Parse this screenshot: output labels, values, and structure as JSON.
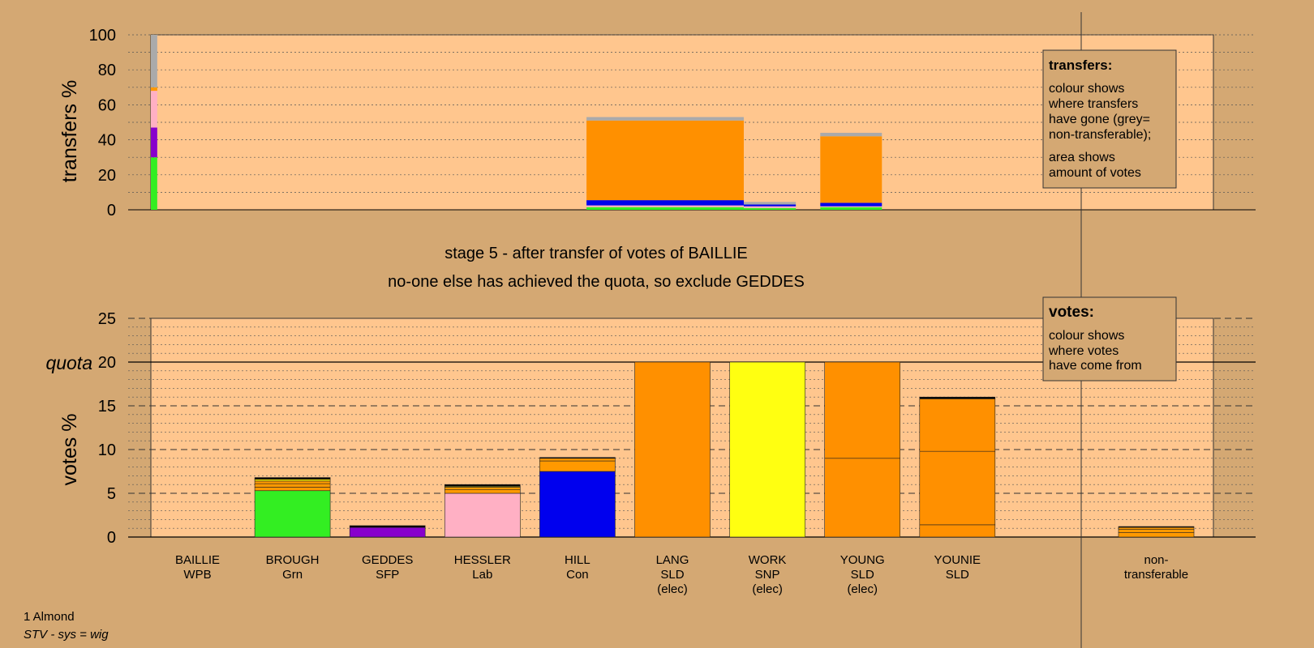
{
  "chart_data": [
    {
      "type": "bar",
      "name": "transfers",
      "ylabel": "transfers %",
      "ylim": [
        0,
        100
      ],
      "yticks": [
        0,
        20,
        40,
        60,
        80,
        100
      ],
      "grid": "dotted",
      "segments": [
        {
          "x0": 0.0,
          "x1": 0.6,
          "y0": 0,
          "y1": 30,
          "color": "#33ee22"
        },
        {
          "x0": 0.0,
          "x1": 0.6,
          "y0": 30,
          "y1": 47,
          "color": "#8800cc"
        },
        {
          "x0": 0.0,
          "x1": 0.6,
          "y0": 47,
          "y1": 68,
          "color": "#ffb0c4"
        },
        {
          "x0": 0.0,
          "x1": 0.6,
          "y0": 68,
          "y1": 70,
          "color": "#ff9900"
        },
        {
          "x0": 0.0,
          "x1": 0.6,
          "y0": 70,
          "y1": 100,
          "color": "#aaaaaa"
        },
        {
          "x0": 41.0,
          "x1": 55.8,
          "y0": 0,
          "y1": 1.5,
          "color": "#33ee22"
        },
        {
          "x0": 41.0,
          "x1": 55.8,
          "y0": 1.5,
          "y1": 2.5,
          "color": "#ffb0c4"
        },
        {
          "x0": 41.0,
          "x1": 55.8,
          "y0": 2.5,
          "y1": 5.5,
          "color": "#0000ee"
        },
        {
          "x0": 41.0,
          "x1": 55.8,
          "y0": 5.5,
          "y1": 51,
          "color": "#ff9000"
        },
        {
          "x0": 41.0,
          "x1": 55.8,
          "y0": 51,
          "y1": 53,
          "color": "#aaaaaa"
        },
        {
          "x0": 55.8,
          "x1": 60.7,
          "y0": 0,
          "y1": 1,
          "color": "#33ee22"
        },
        {
          "x0": 55.8,
          "x1": 60.7,
          "y0": 1,
          "y1": 2,
          "color": "#ffb0c4"
        },
        {
          "x0": 55.8,
          "x1": 60.7,
          "y0": 2,
          "y1": 3,
          "color": "#0000ee"
        },
        {
          "x0": 55.8,
          "x1": 60.7,
          "y0": 3,
          "y1": 4.5,
          "color": "#aaaaaa"
        },
        {
          "x0": 63.0,
          "x1": 68.8,
          "y0": 0,
          "y1": 1.5,
          "color": "#33ee22"
        },
        {
          "x0": 63.0,
          "x1": 68.8,
          "y0": 1.5,
          "y1": 2,
          "color": "#ffb0c4"
        },
        {
          "x0": 63.0,
          "x1": 68.8,
          "y0": 2,
          "y1": 4,
          "color": "#0000ee"
        },
        {
          "x0": 63.0,
          "x1": 68.8,
          "y0": 4,
          "y1": 42,
          "color": "#ff9000"
        },
        {
          "x0": 63.0,
          "x1": 68.8,
          "y0": 42,
          "y1": 44,
          "color": "#aaaaaa"
        }
      ]
    },
    {
      "type": "bar",
      "name": "votes",
      "ylabel": "votes %",
      "ylim": [
        0,
        25
      ],
      "yticks": [
        0,
        5,
        10,
        15,
        20,
        25
      ],
      "quota": 20,
      "quota_label": "quota",
      "grid": "dotted",
      "bars": [
        {
          "label1": "BAILLIE",
          "label2": "WPB",
          "label3": "",
          "segments": []
        },
        {
          "label1": "BROUGH",
          "label2": "Grn",
          "label3": "",
          "segments": [
            {
              "value": 5.3,
              "color": "#33ee22"
            },
            {
              "value": 0.4,
              "color": "#ff9900"
            },
            {
              "value": 0.4,
              "color": "#ff9900"
            },
            {
              "value": 0.3,
              "color": "#ff9900"
            },
            {
              "value": 0.2,
              "color": "#ffee00"
            },
            {
              "value": 0.2,
              "color": "#000000"
            }
          ]
        },
        {
          "label1": "GEDDES",
          "label2": "SFP",
          "label3": "",
          "segments": [
            {
              "value": 1.1,
              "color": "#8800cc"
            },
            {
              "value": 0.2,
              "color": "#000000"
            }
          ]
        },
        {
          "label1": "HESSLER",
          "label2": "Lab",
          "label3": "",
          "segments": [
            {
              "value": 5.0,
              "color": "#ffb0c4"
            },
            {
              "value": 0.4,
              "color": "#ff9900"
            },
            {
              "value": 0.3,
              "color": "#ff9900"
            },
            {
              "value": 0.1,
              "color": "#ffee00"
            },
            {
              "value": 0.2,
              "color": "#000000"
            }
          ]
        },
        {
          "label1": "HILL",
          "label2": "Con",
          "label3": "",
          "segments": [
            {
              "value": 7.5,
              "color": "#0000ee"
            },
            {
              "value": 1.2,
              "color": "#ff9900"
            },
            {
              "value": 0.3,
              "color": "#ff9900"
            },
            {
              "value": 0.1,
              "color": "#000000"
            }
          ]
        },
        {
          "label1": "LANG",
          "label2": "SLD",
          "label3": "(elec)",
          "segments": [
            {
              "value": 20,
              "color": "#ff9000"
            }
          ]
        },
        {
          "label1": "WORK",
          "label2": "SNP",
          "label3": "(elec)",
          "segments": [
            {
              "value": 20,
              "color": "#ffff11"
            }
          ]
        },
        {
          "label1": "YOUNG",
          "label2": "SLD",
          "label3": "(elec)",
          "segments": [
            {
              "value": 9,
              "color": "#ff9000"
            },
            {
              "value": 11,
              "color": "#ff9000"
            }
          ]
        },
        {
          "label1": "YOUNIE",
          "label2": "SLD",
          "label3": "",
          "segments": [
            {
              "value": 1.4,
              "color": "#ff9000"
            },
            {
              "value": 8.4,
              "color": "#ff9000"
            },
            {
              "value": 6.0,
              "color": "#ff9000"
            },
            {
              "value": 0.2,
              "color": "#000000"
            }
          ]
        },
        {
          "label1": "",
          "label2": "",
          "label3": "",
          "segments": []
        },
        {
          "label1": "non-",
          "label2": "transferable",
          "label3": "",
          "segments": [
            {
              "value": 0.5,
              "color": "#ff9900"
            },
            {
              "value": 0.4,
              "color": "#ff9900"
            },
            {
              "value": 0.2,
              "color": "#ff9900"
            },
            {
              "value": 0.1,
              "color": "#000000"
            }
          ]
        }
      ]
    }
  ],
  "stage_title": "stage 5 - after transfer of votes of BAILLIE",
  "stage_subtitle": "no-one else has achieved the quota, so exclude GEDDES",
  "transfers_legend": {
    "title": "transfers:",
    "lines": [
      "colour shows",
      "where transfers",
      "have gone (grey=",
      "non-transferable);"
    ],
    "lines2": [
      "area shows",
      "amount of votes"
    ]
  },
  "votes_legend": {
    "title": "votes:",
    "lines": [
      "colour shows",
      "where votes",
      "have come from"
    ]
  },
  "footer": {
    "ward": "1 Almond",
    "system": "STV - sys = wig"
  },
  "colors": {
    "background": "#d4a873",
    "plot_background": "#ffc68e",
    "border": "#333333"
  }
}
